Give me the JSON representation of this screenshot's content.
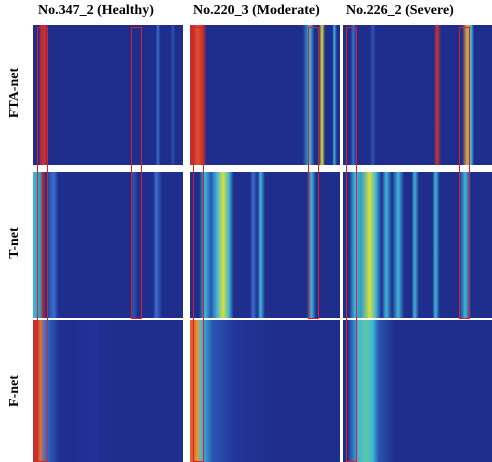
{
  "columns": [
    {
      "title": "No.347_2 (Healthy)"
    },
    {
      "title": "No.220_3 (Moderate)"
    },
    {
      "title": "No.226_2 (Severe)"
    }
  ],
  "rows": [
    {
      "label": "FTA-net"
    },
    {
      "label": "T-net"
    },
    {
      "label": "F-net"
    }
  ]
}
